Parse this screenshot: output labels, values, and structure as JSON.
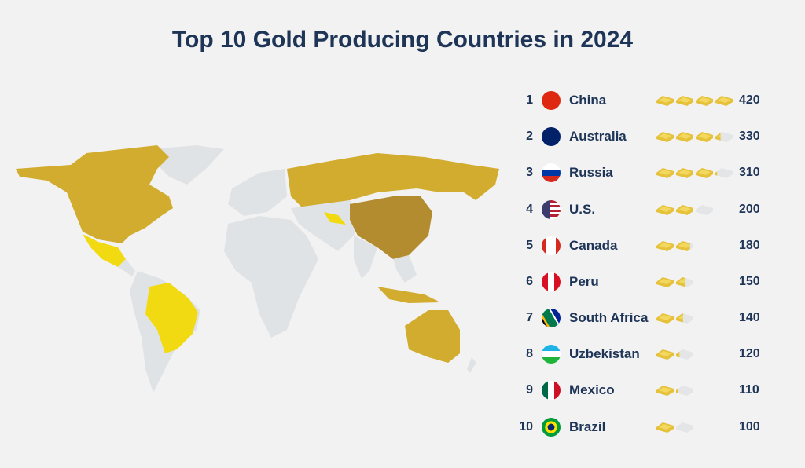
{
  "title": "Top 10 Gold Producing Countries in 2024",
  "colors": {
    "title": "#1f3557",
    "gold": "#d2ac2e",
    "dark_gold": "#b48c30",
    "yellow": "#f1da12",
    "land_gray": "#e0e3e5",
    "bar_gold": "#e5c23a",
    "bar_gray": "#e3e5e6"
  },
  "chart_data": {
    "type": "table",
    "title": "Top 10 Gold Producing Countries in 2024",
    "columns": [
      "rank",
      "country",
      "value"
    ],
    "rows": [
      {
        "rank": "1",
        "country": "China",
        "value": 420,
        "flag": "china-flag"
      },
      {
        "rank": "2",
        "country": "Australia",
        "value": 330,
        "flag": "australia-flag"
      },
      {
        "rank": "3",
        "country": "Russia",
        "value": 310,
        "flag": "russia-flag"
      },
      {
        "rank": "4",
        "country": "U.S.",
        "value": 200,
        "flag": "us-flag"
      },
      {
        "rank": "5",
        "country": "Canada",
        "value": 180,
        "flag": "canada-flag"
      },
      {
        "rank": "6",
        "country": "Peru",
        "value": 150,
        "flag": "peru-flag"
      },
      {
        "rank": "7",
        "country": "South Africa",
        "value": 140,
        "flag": "south-africa-flag"
      },
      {
        "rank": "8",
        "country": "Uzbekistan",
        "value": 120,
        "flag": "uzbekistan-flag"
      },
      {
        "rank": "9",
        "country": "Mexico",
        "value": 110,
        "flag": "mexico-flag"
      },
      {
        "rank": "10",
        "country": "Brazil",
        "value": 100,
        "flag": "brazil-flag"
      }
    ],
    "bar_unit": 100
  }
}
